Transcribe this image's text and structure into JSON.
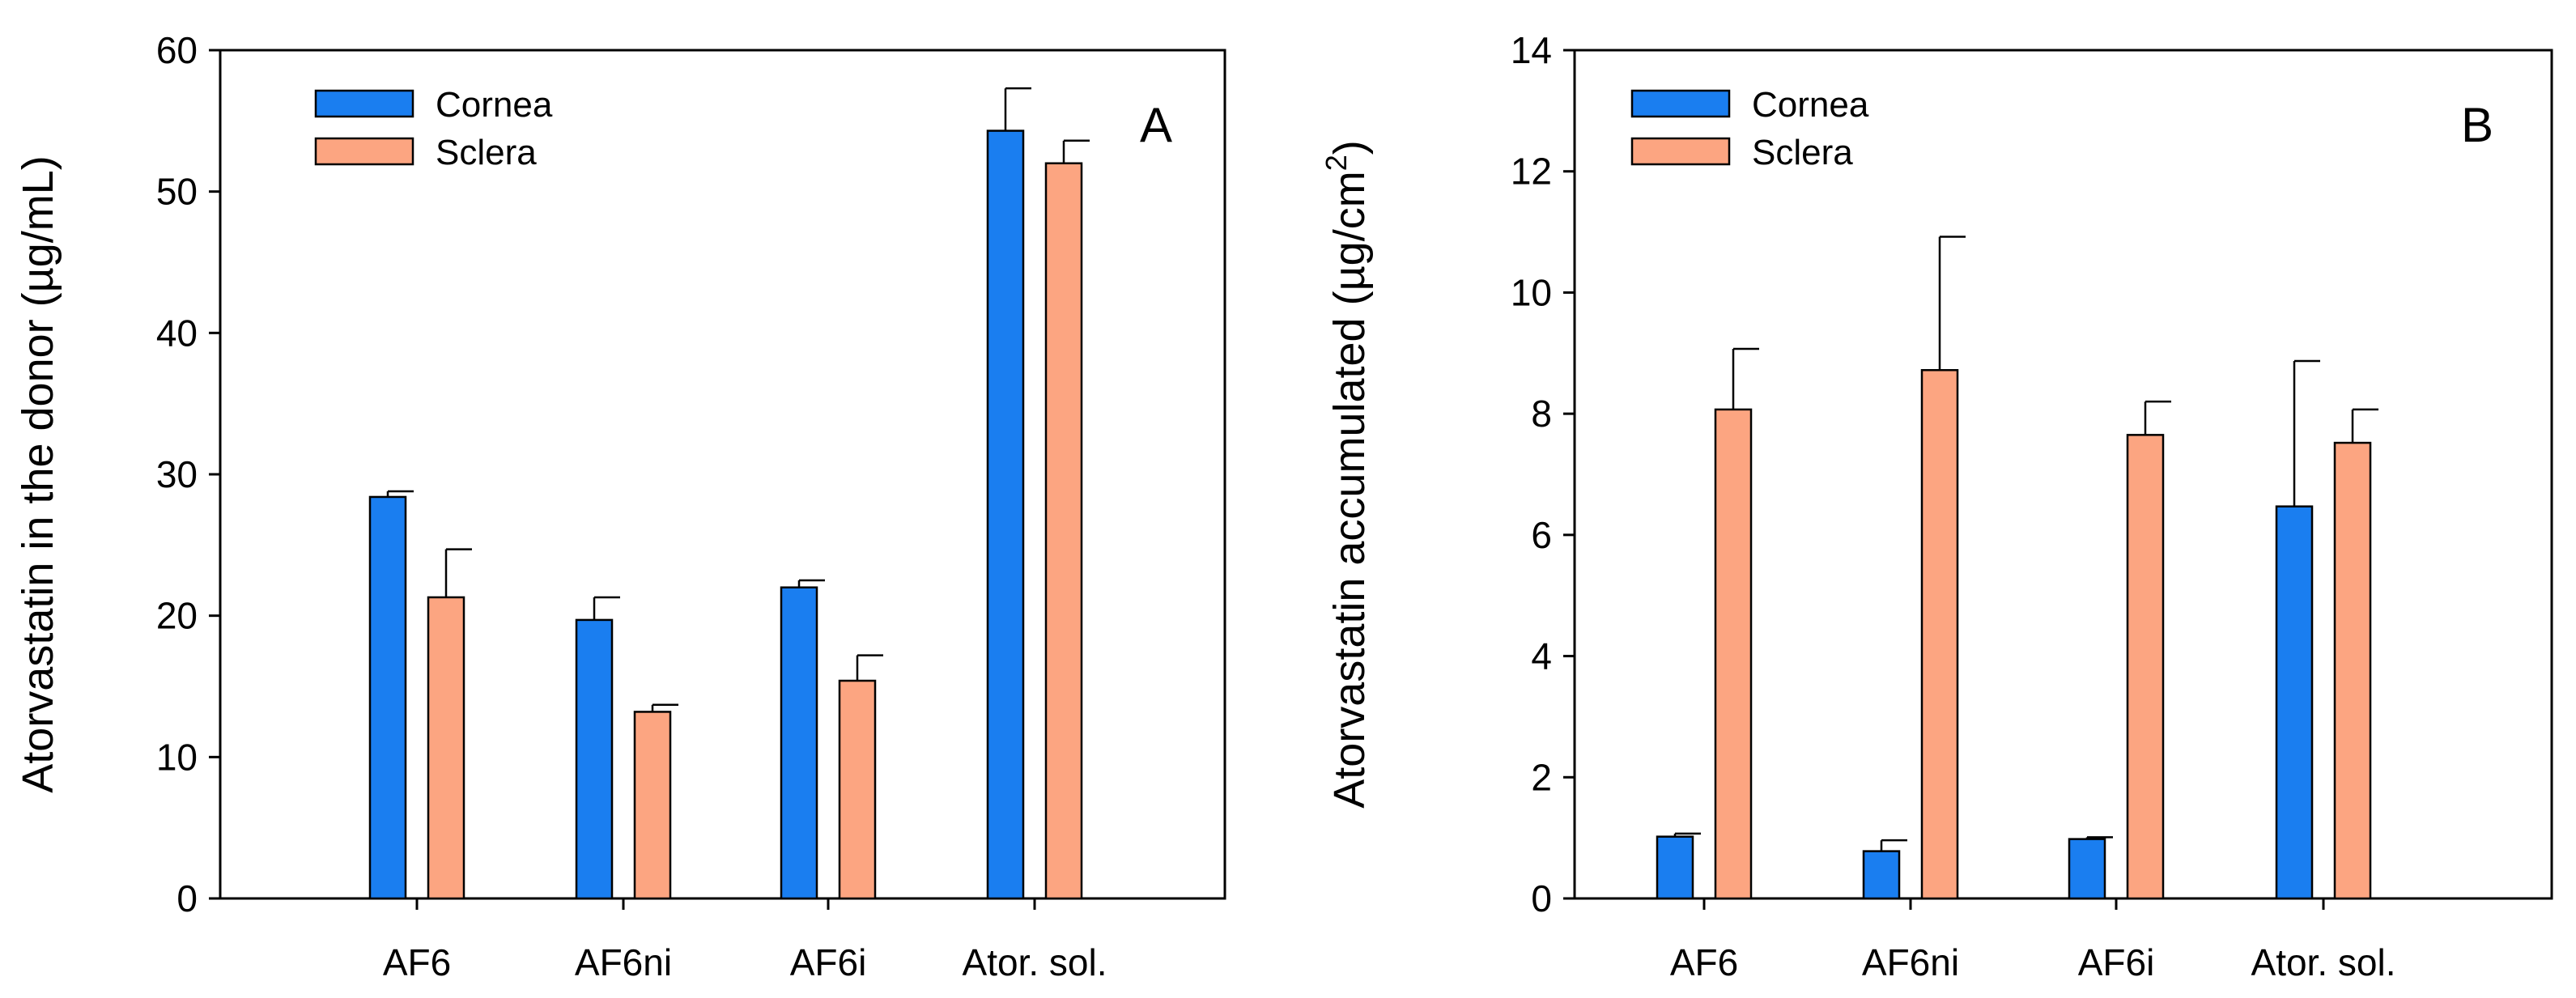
{
  "chart_data": [
    {
      "type": "bar",
      "panel": "A",
      "title": "",
      "xlabel": "",
      "ylabel": "Atorvastatin in the donor (µg/mL)",
      "ylabel_main": "Atorvastatin in the donor (µg/mL)",
      "ylabel_super": "",
      "ylim": [
        0,
        60
      ],
      "yticks": [
        0,
        10,
        20,
        30,
        40,
        50,
        60
      ],
      "categories": [
        "AF6",
        "AF6ni",
        "AF6i",
        "Ator. sol."
      ],
      "series": [
        {
          "name": "Cornea",
          "color": "#1a7ef0",
          "values": [
            28.4,
            19.7,
            22.0,
            54.3
          ],
          "errors": [
            0.4,
            1.6,
            0.5,
            3.0
          ]
        },
        {
          "name": "Sclera",
          "color": "#fca581",
          "values": [
            21.3,
            13.2,
            15.4,
            52.0
          ],
          "errors": [
            3.4,
            0.5,
            1.8,
            1.6
          ]
        }
      ],
      "legend": "top-left"
    },
    {
      "type": "bar",
      "panel": "B",
      "title": "",
      "xlabel": "",
      "ylabel": "Atorvastatin accumulated (µg/cm2)",
      "ylabel_main": "Atorvastatin accumulated (µg/cm",
      "ylabel_super": "2",
      "ylabel_close": ")",
      "ylim": [
        0,
        14
      ],
      "yticks": [
        0,
        2,
        4,
        6,
        8,
        10,
        12,
        14
      ],
      "categories": [
        "AF6",
        "AF6ni",
        "AF6i",
        "Ator. sol."
      ],
      "series": [
        {
          "name": "Cornea",
          "color": "#1a7ef0",
          "values": [
            1.02,
            0.78,
            0.98,
            6.47
          ],
          "errors": [
            0.05,
            0.18,
            0.03,
            2.4
          ]
        },
        {
          "name": "Sclera",
          "color": "#fca581",
          "values": [
            8.07,
            8.72,
            7.65,
            7.52
          ],
          "errors": [
            1.0,
            2.2,
            0.55,
            0.55
          ]
        }
      ],
      "legend": "top-left"
    }
  ]
}
